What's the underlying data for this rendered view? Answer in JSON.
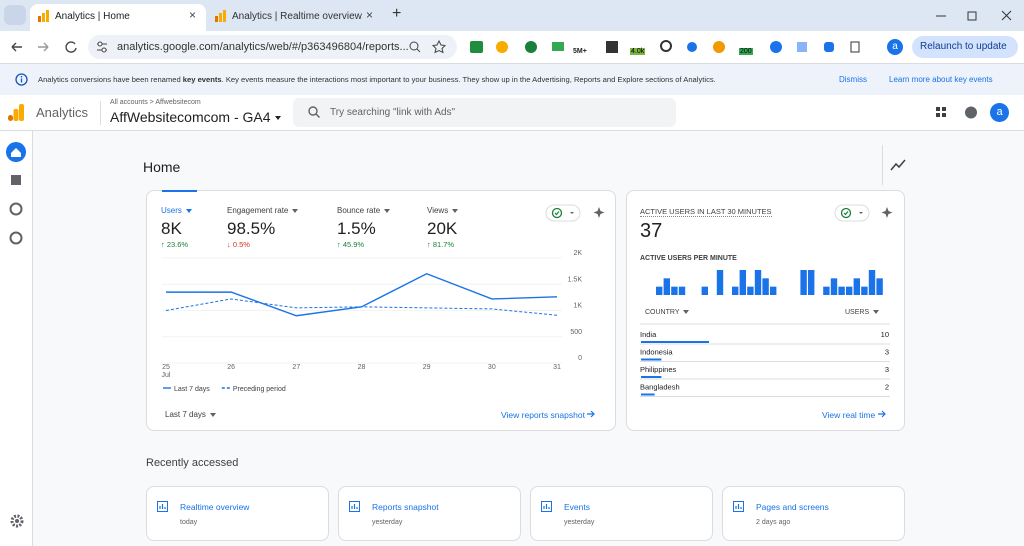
{
  "browser": {
    "tabs": [
      "Analytics | Home",
      "Analytics | Realtime overview"
    ],
    "url": "analytics.google.com/analytics/web/#/p363496804/reports...",
    "extension_badges": [
      "5M+",
      "4.0k",
      "200"
    ],
    "profile": "a",
    "relaunch": "Relaunch to update"
  },
  "banner": {
    "text_before": "Analytics conversions have been renamed ",
    "bold": "key events",
    "text_after": ". Key events measure the interactions most important to your business. They show up in the Advertising, Reports and Explore sections of Analytics.",
    "dismiss": "Dismiss",
    "learn_more": "Learn more about key events"
  },
  "header": {
    "product": "Analytics",
    "breadcrumb": "All accounts > Affwebsitecom",
    "property": "AffWebsitecomcom - GA4",
    "search_placeholder": "Try searching \"link with Ads\"",
    "avatar": "a"
  },
  "home": {
    "title": "Home",
    "metrics": [
      {
        "label": "Users",
        "value": "8K",
        "change": "↑ 23.6%",
        "trend": "up"
      },
      {
        "label": "Engagement rate",
        "value": "98.5%",
        "change": "↓ 0.5%",
        "trend": "down"
      },
      {
        "label": "Bounce rate",
        "value": "1.5%",
        "change": "↑ 45.9%",
        "trend": "up"
      },
      {
        "label": "Views",
        "value": "20K",
        "change": "↑ 81.7%",
        "trend": "up"
      }
    ],
    "chart": {
      "type": "line",
      "x": [
        "25",
        "26",
        "27",
        "28",
        "29",
        "30",
        "31"
      ],
      "x_month": "Jul",
      "ylim": [
        0,
        2000
      ],
      "yticks": [
        {
          "value": 2000,
          "label": "2K"
        },
        {
          "value": 1500,
          "label": "1.5K"
        },
        {
          "value": 1000,
          "label": "1K"
        },
        500,
        0
      ],
      "grid": true,
      "series": [
        {
          "name": "Last 7 days",
          "color": "#1a73e8",
          "dashed": false,
          "values": [
            1350,
            1350,
            900,
            1070,
            1700,
            1220,
            1260
          ]
        },
        {
          "name": "Preceding period",
          "color": "#1a73e8",
          "dashed": true,
          "values": [
            1000,
            1220,
            1050,
            1070,
            1050,
            1030,
            910
          ]
        }
      ]
    },
    "date_range": "Last 7 days",
    "link": "View reports snapshot"
  },
  "realtime": {
    "title": "ACTIVE USERS IN LAST 30 MINUTES",
    "value": 37,
    "per_minute_title": "ACTIVE USERS PER MINUTE",
    "per_minute": {
      "type": "bar",
      "color": "#1a73e8",
      "ylim": [
        0,
        3
      ],
      "values": [
        1,
        2,
        1,
        1,
        0,
        0,
        1,
        0,
        3,
        0,
        1,
        3,
        1,
        3,
        2,
        1,
        0,
        0,
        0,
        3,
        3,
        0,
        1,
        2,
        1,
        1,
        2,
        1,
        3,
        2
      ]
    },
    "table": {
      "headers": [
        "COUNTRY",
        "USERS"
      ],
      "max": 10,
      "rows": [
        {
          "country": "India",
          "users": 10
        },
        {
          "country": "Indonesia",
          "users": 3
        },
        {
          "country": "Philippines",
          "users": 3
        },
        {
          "country": "Bangladesh",
          "users": 2
        }
      ]
    },
    "link": "View real time"
  },
  "recent": {
    "title": "Recently accessed",
    "cards": [
      {
        "name": "Realtime overview",
        "when": "today"
      },
      {
        "name": "Reports snapshot",
        "when": "yesterday"
      },
      {
        "name": "Events",
        "when": "yesterday"
      },
      {
        "name": "Pages and screens",
        "when": "2 days ago"
      }
    ]
  }
}
